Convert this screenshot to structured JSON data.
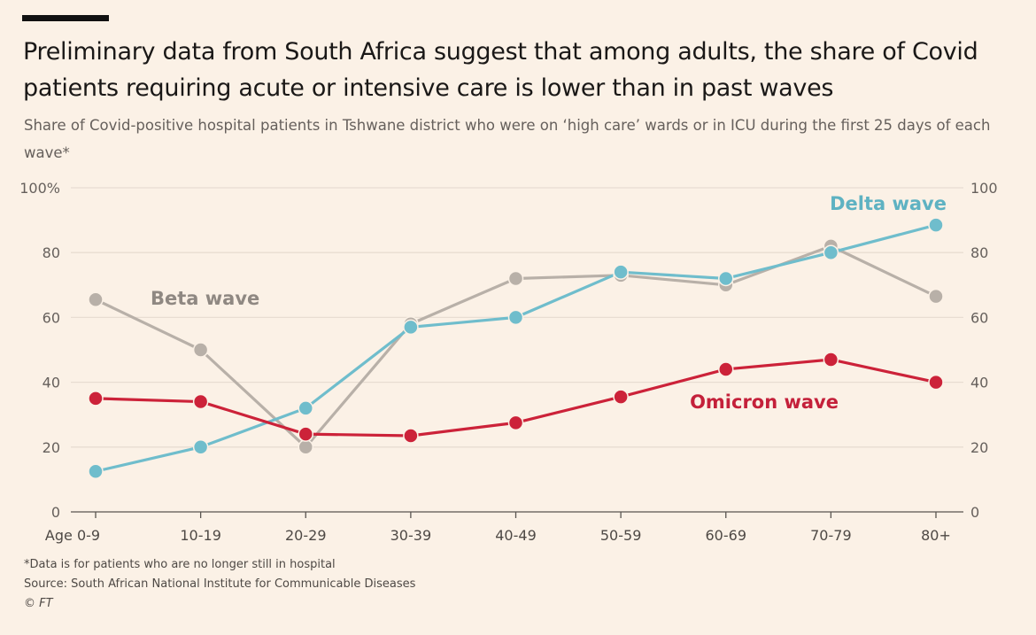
{
  "chart_data": {
    "type": "line",
    "title": "Preliminary data from South Africa suggest that among adults, the share of Covid patients requiring acute or intensive care is lower than in past waves",
    "subtitle": "Share of Covid-positive hospital patients in Tshwane district who were on ‘high care’ wards or in ICU during the first 25 days of each wave*",
    "categories": [
      "Age 0-9",
      "10-19",
      "20-29",
      "30-39",
      "40-49",
      "50-59",
      "60-69",
      "70-79",
      "80+"
    ],
    "ylim": [
      0,
      100
    ],
    "yticks_left": [
      "0",
      "20",
      "40",
      "60",
      "80",
      "100%"
    ],
    "yticks_right": [
      "0",
      "20",
      "40",
      "60",
      "80",
      "100"
    ],
    "ytick_values": [
      0,
      20,
      40,
      60,
      80,
      100
    ],
    "grid": true,
    "series": [
      {
        "name": "Beta wave",
        "color": "#b8b0a8",
        "label_color": "#8f8882",
        "values": [
          65.5,
          50,
          20,
          58,
          72,
          73,
          70,
          82,
          66.5
        ]
      },
      {
        "name": "Delta wave",
        "color": "#6fbdcc",
        "label_color": "#5eb2c2",
        "values": [
          12.5,
          20,
          32,
          57,
          60,
          74,
          72,
          80,
          88.5
        ]
      },
      {
        "name": "Omicron wave",
        "color": "#cc2239",
        "label_color": "#c4203a",
        "values": [
          35,
          34,
          24,
          23.5,
          27.5,
          35.5,
          44,
          47,
          40
        ]
      }
    ],
    "notes": [
      "*Data is for patients who are no longer still in hospital",
      "Source: South African National Institute for Communicable Diseases",
      "© FT"
    ]
  }
}
